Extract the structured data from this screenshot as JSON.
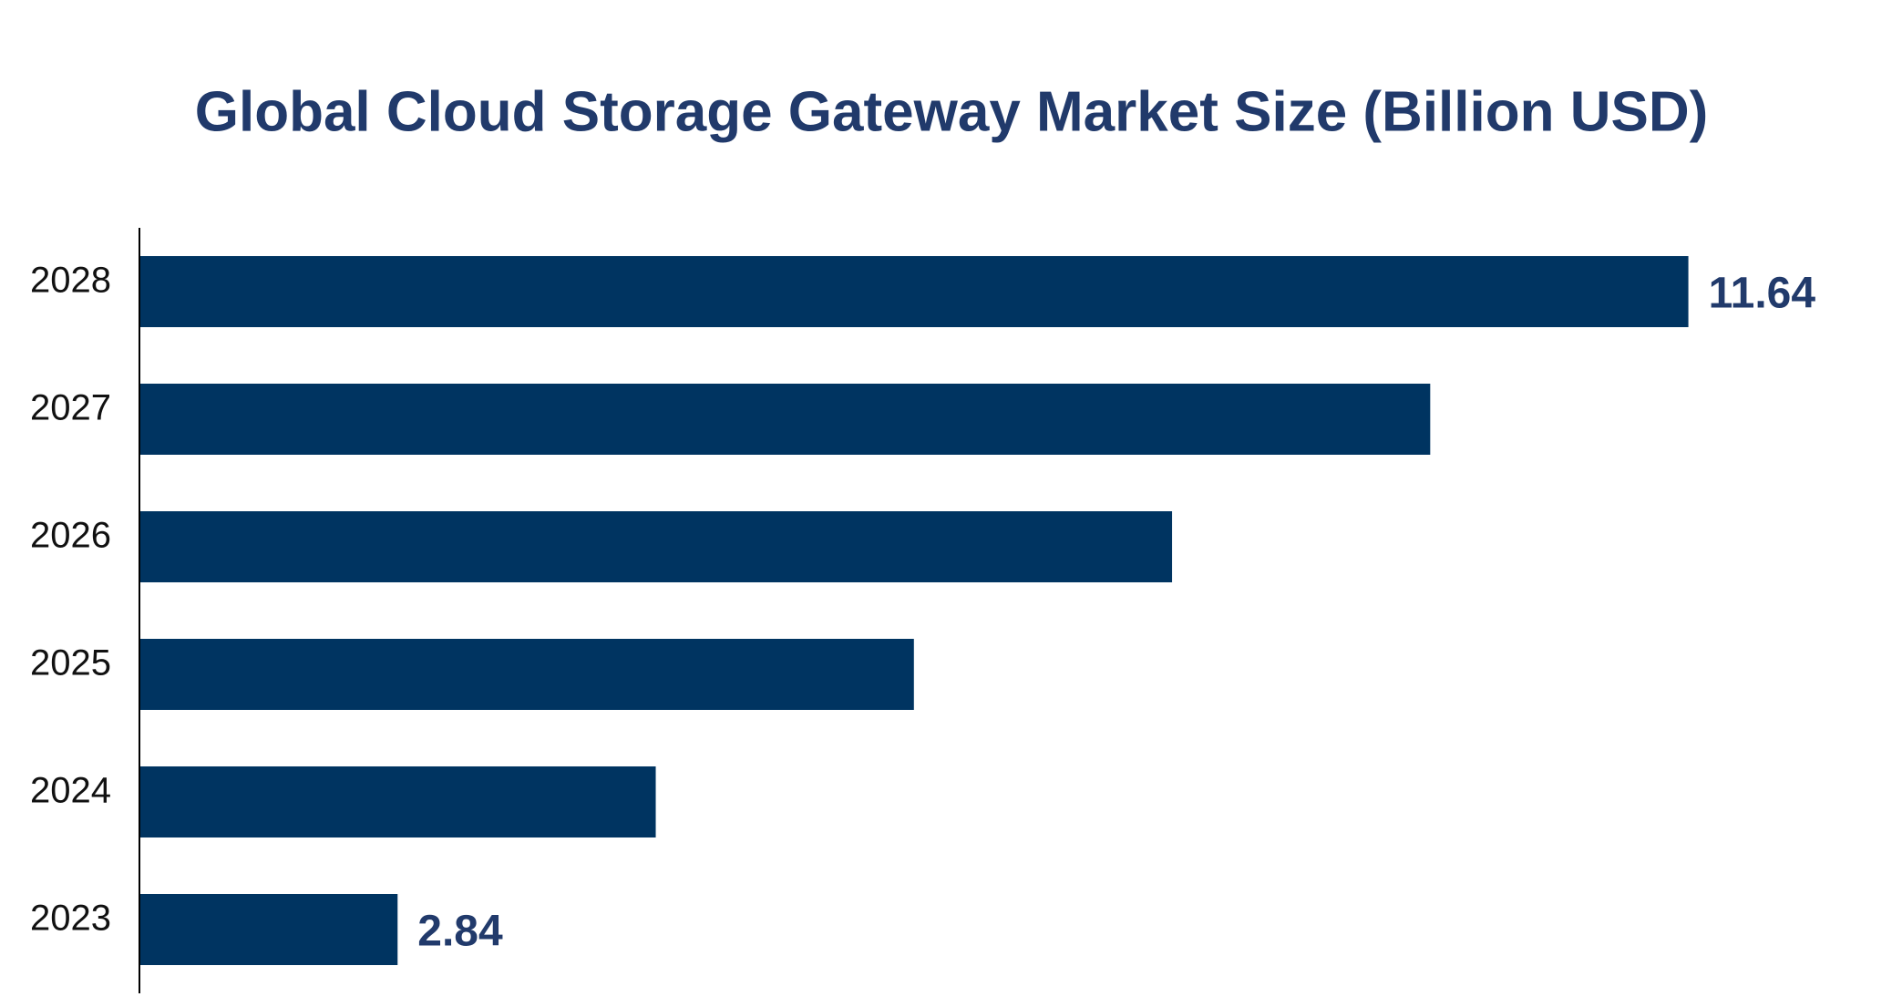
{
  "chart_data": {
    "type": "barh",
    "title": "Global Cloud Storage Gateway Market Size (Billion USD)",
    "categories": [
      "2023",
      "2024",
      "2025",
      "2026",
      "2027",
      "2028"
    ],
    "values": [
      2.84,
      4.6,
      6.36,
      8.12,
      9.88,
      11.64
    ],
    "value_labels": [
      "2.84",
      null,
      null,
      null,
      null,
      "11.64"
    ],
    "color": "#003461",
    "xlim": [
      1.08,
      12.5
    ]
  }
}
